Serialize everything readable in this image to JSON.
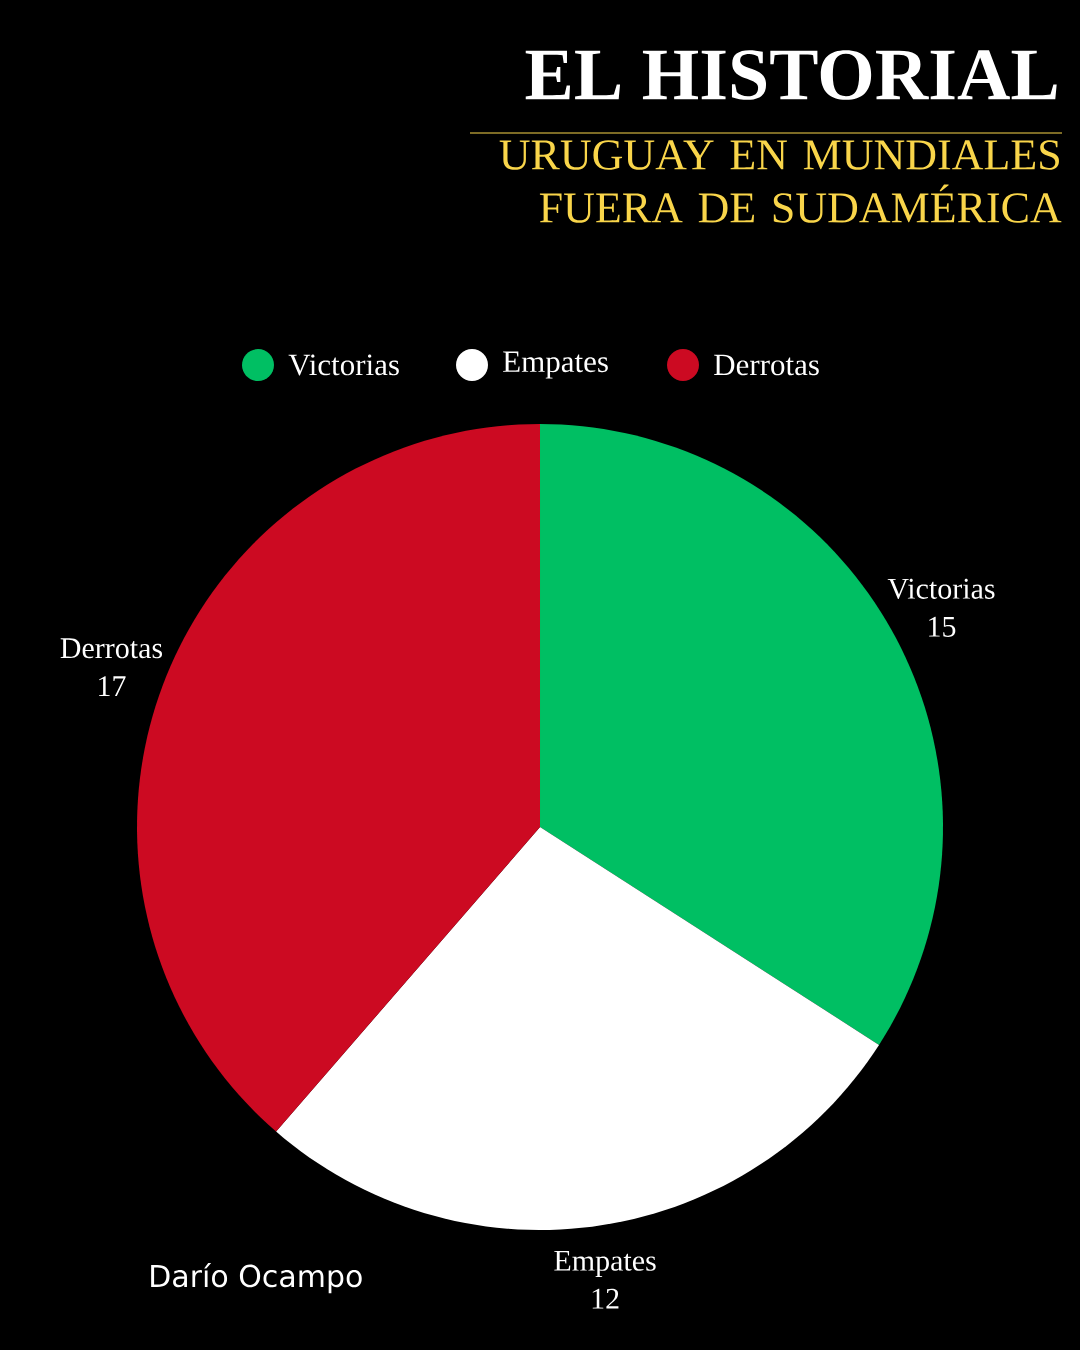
{
  "chart_data": {
    "type": "pie",
    "title": "EL HISTORIAL",
    "subtitle": "URUGUAY EN MUNDIALES FUERA DE SUDAMÉRICA",
    "categories": [
      "Victorias",
      "Empates",
      "Derrotas"
    ],
    "values": [
      15,
      12,
      17
    ],
    "colors": [
      "#00bf63",
      "#ffffff",
      "#cc0a22"
    ],
    "legend": "top",
    "data_labels": true,
    "annotations": [
      "Darío Ocampo"
    ]
  }
}
